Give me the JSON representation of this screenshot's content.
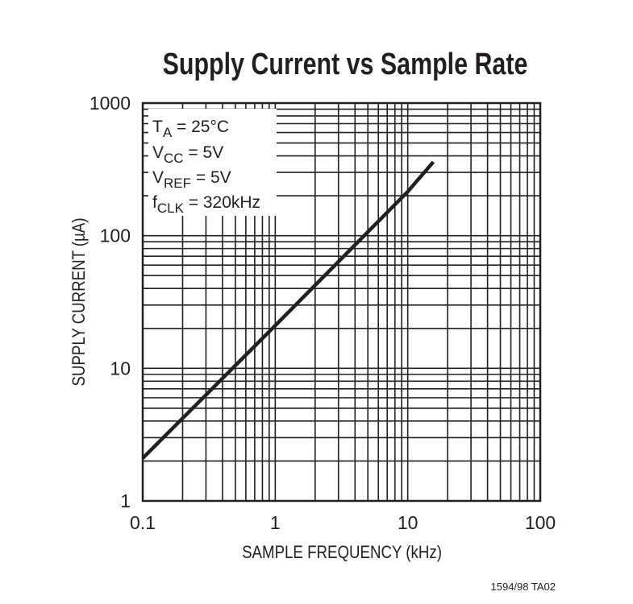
{
  "chart_data": {
    "type": "line",
    "title": "Supply Current vs Sample Rate",
    "xlabel": "SAMPLE FREQUENCY (kHz)",
    "ylabel": "SUPPLY CURRENT (µA)",
    "x_scale": "log",
    "y_scale": "log",
    "xlim": [
      0.1,
      100
    ],
    "ylim": [
      1,
      1000
    ],
    "x_ticks": [
      "0.1",
      "1",
      "10",
      "100"
    ],
    "y_ticks": [
      "1",
      "10",
      "100",
      "1000"
    ],
    "grid": true,
    "series": [
      {
        "x": [
          0.1,
          1,
          10,
          15.6
        ],
        "y": [
          2.1,
          21,
          215,
          360
        ]
      }
    ],
    "annotations": {
      "ta": {
        "main": "T",
        "sub": "A",
        "rest": " = 25°C"
      },
      "vcc": {
        "main": "V",
        "sub": "CC",
        "rest": " = 5V"
      },
      "vref": {
        "main": "V",
        "sub": "REF",
        "rest": " = 5V"
      },
      "fclk": {
        "main": "f",
        "sub": "CLK",
        "rest": " = 320kHz"
      }
    },
    "footnote": "1594/98 TA02",
    "line_color": "#231f20"
  }
}
